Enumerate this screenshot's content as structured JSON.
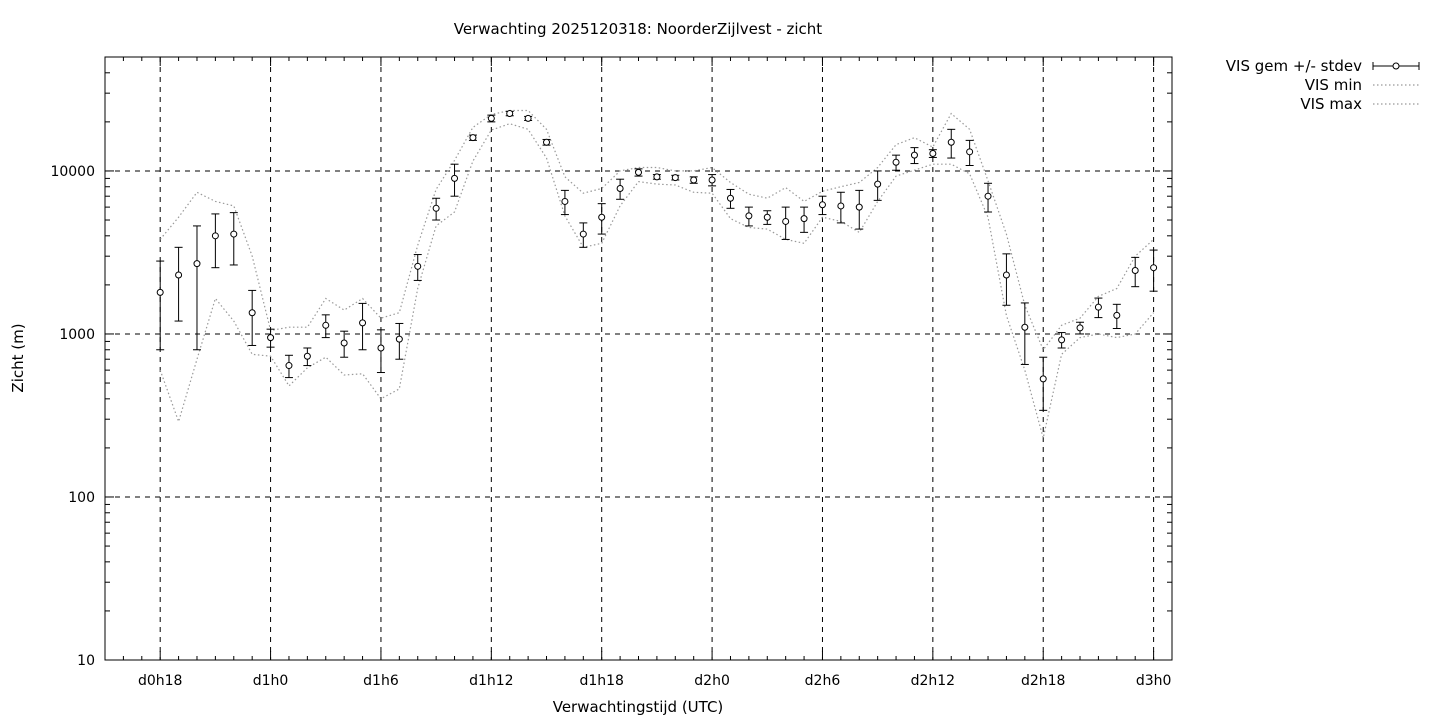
{
  "chart_data": {
    "type": "scatter",
    "title": "Verwachting 2025120318: NoorderZijlvest - zicht",
    "xlabel": "Verwachtingstijd (UTC)",
    "ylabel": "Zicht (m)",
    "yscale": "log",
    "ylim": [
      10,
      50000
    ],
    "xlim_hours": [
      15,
      73
    ],
    "grid": "dashed at labelled ticks",
    "legend_position": "outside top-right",
    "x_ticks": [
      {
        "hour": 18,
        "label": "d0h18"
      },
      {
        "hour": 24,
        "label": "d1h0"
      },
      {
        "hour": 30,
        "label": "d1h6"
      },
      {
        "hour": 36,
        "label": "d1h12"
      },
      {
        "hour": 42,
        "label": "d1h18"
      },
      {
        "hour": 48,
        "label": "d2h0"
      },
      {
        "hour": 54,
        "label": "d2h6"
      },
      {
        "hour": 60,
        "label": "d2h12"
      },
      {
        "hour": 66,
        "label": "d2h18"
      },
      {
        "hour": 72,
        "label": "d3h0"
      }
    ],
    "y_ticks": [
      {
        "value": 10,
        "label": "10"
      },
      {
        "value": 100,
        "label": "100"
      },
      {
        "value": 1000,
        "label": "1000"
      },
      {
        "value": 10000,
        "label": "10000"
      }
    ],
    "x_hours": [
      18,
      19,
      20,
      21,
      22,
      23,
      24,
      25,
      26,
      27,
      28,
      29,
      30,
      31,
      32,
      33,
      34,
      35,
      36,
      37,
      38,
      39,
      40,
      41,
      42,
      43,
      44,
      45,
      46,
      47,
      48,
      49,
      50,
      51,
      52,
      53,
      54,
      55,
      56,
      57,
      58,
      59,
      60,
      61,
      62,
      63,
      64,
      65,
      66,
      67,
      68,
      69,
      70,
      71,
      72
    ],
    "series": [
      {
        "name": "VIS gem +/- stdev",
        "style": "points with error bars",
        "mean": [
          1800,
          2300,
          2700,
          4000,
          4100,
          1350,
          950,
          640,
          730,
          1130,
          880,
          1170,
          820,
          930,
          2600,
          5900,
          9000,
          16000,
          21000,
          22500,
          21000,
          15000,
          6500,
          4100,
          5200,
          7800,
          9800,
          9200,
          9100,
          8800,
          8800,
          6800,
          5300,
          5200,
          4900,
          5100,
          6200,
          6100,
          6000,
          8300,
          11300,
          12500,
          12800,
          15000,
          13100,
          7000,
          2300,
          1100,
          530,
          920,
          1090,
          1460,
          1300,
          2450,
          2550
        ],
        "stdev": [
          1000,
          1100,
          1900,
          1450,
          1450,
          500,
          120,
          100,
          90,
          180,
          160,
          370,
          240,
          230,
          470,
          900,
          2000,
          600,
          1000,
          700,
          600,
          600,
          1100,
          700,
          1100,
          1100,
          500,
          300,
          300,
          400,
          700,
          900,
          700,
          500,
          1100,
          900,
          800,
          1300,
          1600,
          1700,
          1200,
          1400,
          700,
          3000,
          2300,
          1400,
          800,
          450,
          190,
          100,
          90,
          200,
          220,
          500,
          720
        ]
      },
      {
        "name": "VIS min",
        "style": "dotted line",
        "values": [
          600,
          290,
          700,
          1650,
          1200,
          750,
          730,
          480,
          620,
          720,
          560,
          570,
          400,
          460,
          1900,
          4600,
          5600,
          11500,
          17800,
          19500,
          18000,
          12000,
          5300,
          3400,
          3600,
          6100,
          8600,
          8300,
          8200,
          7400,
          7300,
          5100,
          4500,
          4400,
          3800,
          3600,
          5200,
          4900,
          4200,
          6500,
          9300,
          10100,
          11000,
          11000,
          9600,
          5200,
          1300,
          600,
          230,
          750,
          950,
          1000,
          950,
          1000,
          1350
        ]
      },
      {
        "name": "VIS max",
        "style": "dotted line",
        "values": [
          3800,
          5200,
          7400,
          6500,
          6100,
          3000,
          1050,
          1100,
          1100,
          1650,
          1400,
          1650,
          1250,
          1350,
          3500,
          7700,
          11600,
          18500,
          22200,
          23500,
          23500,
          18000,
          9200,
          7300,
          7800,
          10000,
          10500,
          10500,
          10000,
          10000,
          10500,
          8500,
          7200,
          6800,
          7900,
          6500,
          7500,
          8000,
          8500,
          10500,
          14500,
          16000,
          14000,
          22500,
          18000,
          8700,
          4100,
          1500,
          800,
          1130,
          1250,
          1700,
          1900,
          3000,
          3800
        ]
      }
    ],
    "legend": [
      {
        "label": "VIS gem +/- stdev",
        "symbol": "errorbar"
      },
      {
        "label": "VIS min",
        "symbol": "dotted"
      },
      {
        "label": "VIS max",
        "symbol": "dotted"
      }
    ],
    "colors": {
      "axis": "#000000",
      "grid": "#000000",
      "series_min_max": "#999999",
      "marker_fill": "#ffffff"
    }
  }
}
